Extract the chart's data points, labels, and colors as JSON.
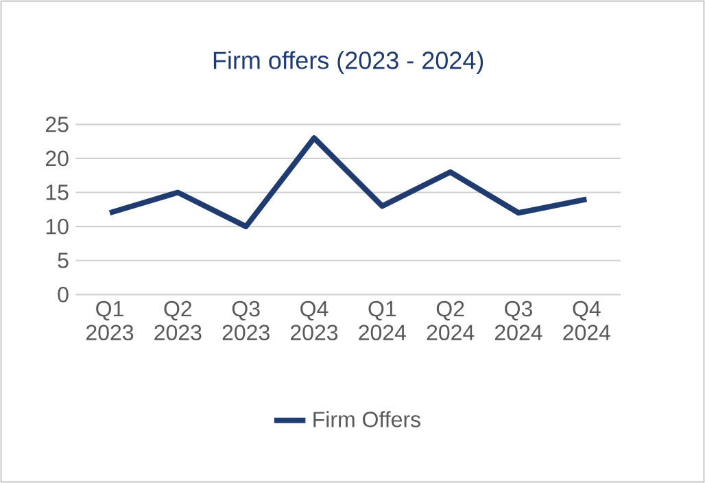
{
  "chart_data": {
    "type": "line",
    "title": "Firm offers (2023 - 2024)",
    "categories": [
      "Q1 2023",
      "Q2 2023",
      "Q3 2023",
      "Q4 2023",
      "Q1 2024",
      "Q2 2024",
      "Q3 2024",
      "Q4 2024"
    ],
    "series": [
      {
        "name": "Firm Offers",
        "color": "#1f3b6f",
        "values": [
          12,
          15,
          10,
          23,
          13,
          18,
          12,
          14
        ]
      }
    ],
    "ylim": [
      0,
      25
    ],
    "yticks": [
      0,
      5,
      10,
      15,
      20,
      25
    ],
    "grid": "y",
    "legend": "bottom",
    "marker": "none",
    "line_style": "solid"
  }
}
